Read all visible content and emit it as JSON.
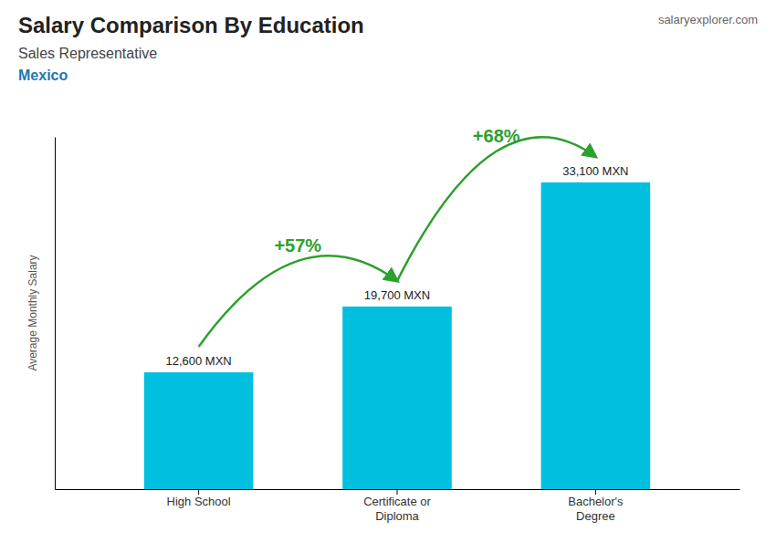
{
  "chart_data": {
    "type": "bar",
    "title": "Salary Comparison By Education",
    "subtitle": "Sales Representative",
    "annotations": [
      "Mexico",
      "salaryexplorer.com"
    ],
    "change_labels": [
      "+57%",
      "+68%"
    ],
    "ylabel": "Average Monthly Salary",
    "categories": [
      "High School",
      "Certificate or\nDiploma",
      "Bachelor's\nDegree"
    ],
    "values": [
      12600,
      19700,
      33100
    ],
    "value_labels": [
      "12,600 MXN",
      "19,700 MXN",
      "33,100 MXN"
    ],
    "data_labels": true,
    "color": "#00bfdf",
    "ylim": [
      0,
      38000
    ],
    "tick_labels": "x",
    "grid": false
  }
}
